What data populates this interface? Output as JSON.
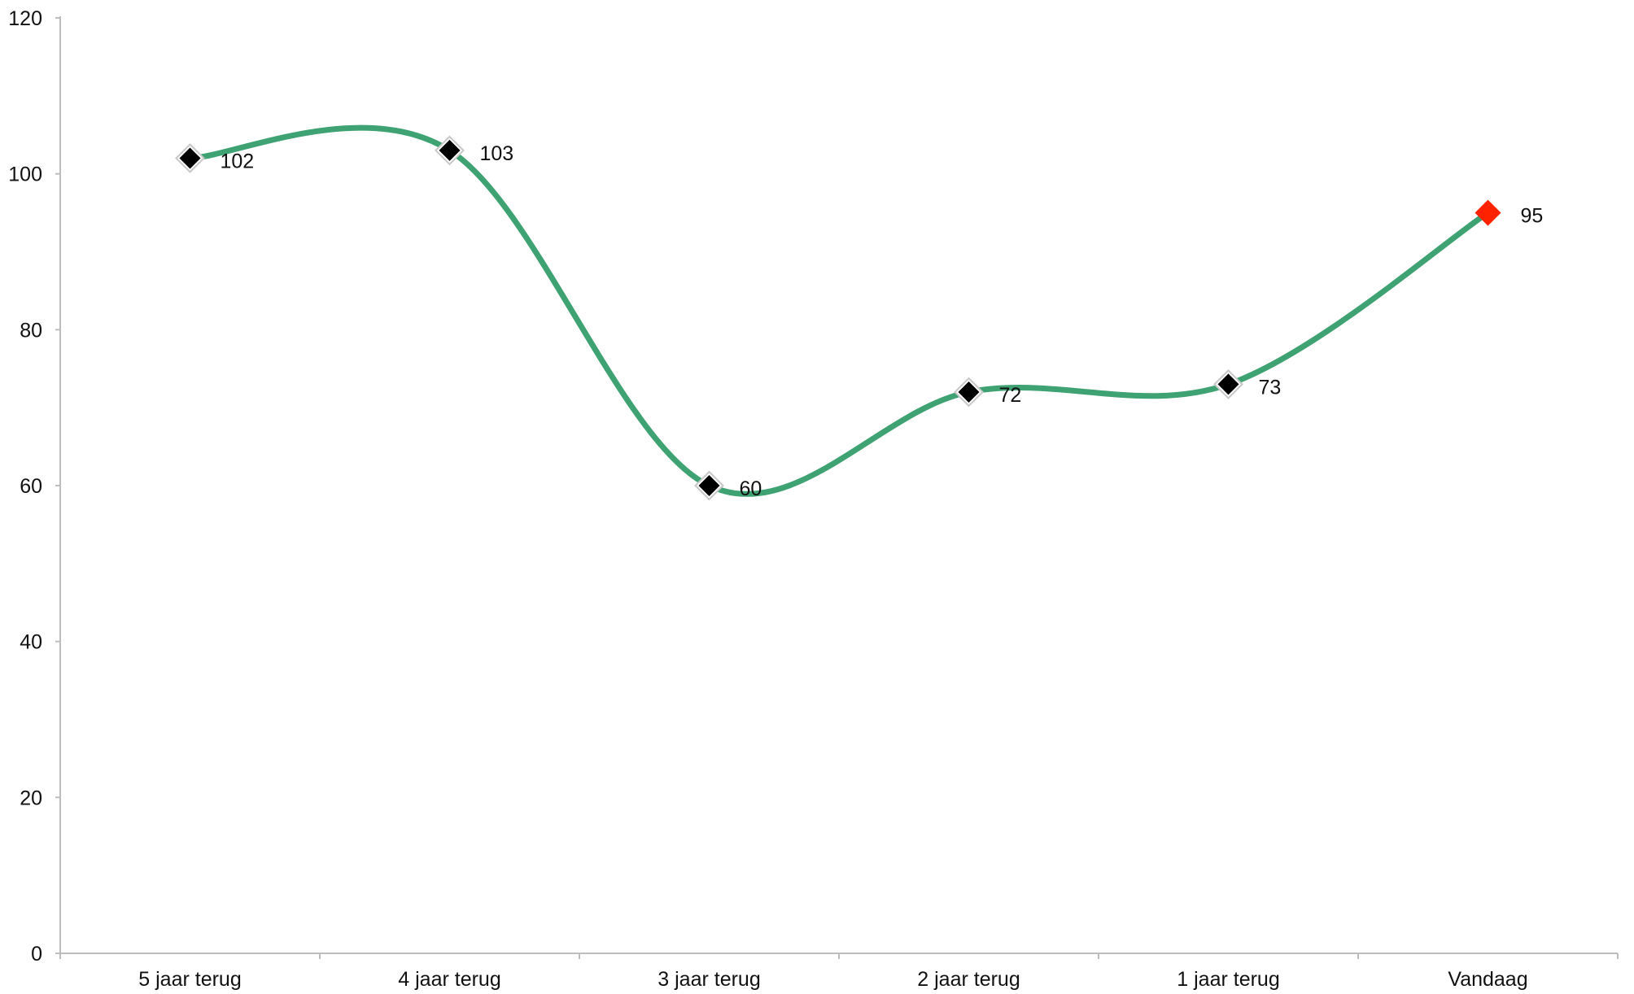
{
  "chart_data": {
    "type": "line",
    "title": "",
    "xlabel": "",
    "ylabel": "",
    "categories": [
      "5 jaar terug",
      "4 jaar terug",
      "3 jaar terug",
      "2 jaar terug",
      "1 jaar terug",
      "Vandaag"
    ],
    "series": [
      {
        "values": [
          102,
          103,
          60,
          72,
          73,
          95
        ],
        "color": "#3fa273"
      }
    ],
    "data_labels": [
      "102",
      "103",
      "60",
      "72",
      "73",
      "95"
    ],
    "ylim": [
      0,
      120
    ],
    "yticks": [
      "0",
      "20",
      "40",
      "60",
      "80",
      "100",
      "120"
    ],
    "marker_color": "#000000",
    "highlight_marker_color": "#ff2200",
    "highlight_index": 5,
    "smooth": true,
    "grid": false,
    "legend": "none"
  }
}
